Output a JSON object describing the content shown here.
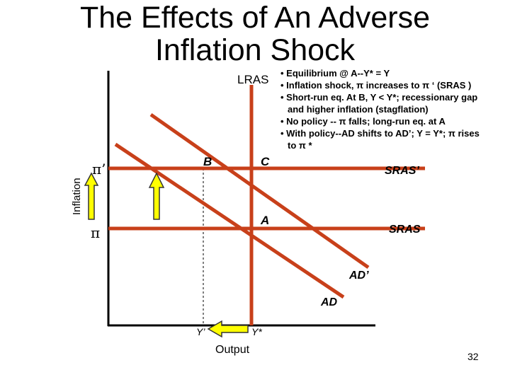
{
  "title": {
    "line1": "The Effects of An Adverse",
    "line2": "Inflation Shock"
  },
  "bullets": [
    "• Equilibrium @ A--Y* = Y",
    "• Inflation shock, π increases to π ‘ (SRAS )",
    "• Short-run eq. At B, Y < Y*; recessionary gap",
    "and higher inflation (stagflation)",
    "• No policy -- π falls; long-run eq. at A",
    "• With policy--AD shifts to AD’; Y = Y*; π rises",
    "to π *"
  ],
  "diagram": {
    "y_axis_label": "Inflation",
    "x_axis_label": "Output",
    "curves": {
      "lras": "LRAS",
      "sras_prime": "SRAS’",
      "sras": "SRAS",
      "ad_prime": "AD’",
      "ad": "AD"
    },
    "points": {
      "b": "B",
      "c": "C",
      "a": "A"
    },
    "y_ticks": {
      "pi_prime": "π’",
      "pi": "π"
    },
    "x_ticks": {
      "y_prime": "Y’",
      "y_star": "Y*"
    },
    "colors": {
      "curve": "#c8401a",
      "arrow_fill": "#ffff00",
      "arrow_stroke": "#333333"
    }
  },
  "page_number": "32"
}
